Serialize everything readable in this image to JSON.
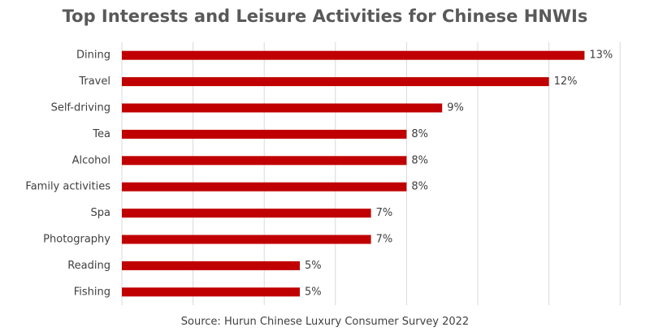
{
  "colors": {
    "bar": "#C00000",
    "grid": "#D9D9D9",
    "title": "#595959",
    "text": "#404040"
  },
  "chart_data": {
    "type": "bar",
    "orientation": "horizontal",
    "title": "Top Interests and Leisure Activities for Chinese HNWIs",
    "source": "Source: Hurun Chinese Luxury Consumer Survey 2022",
    "categories": [
      "Dining",
      "Travel",
      "Self-driving",
      "Tea",
      "Alcohol",
      "Family activities",
      "Spa",
      "Photography",
      "Reading",
      "Fishing"
    ],
    "values": [
      13,
      12,
      9,
      8,
      8,
      8,
      7,
      7,
      5,
      5
    ],
    "data_labels": [
      "13%",
      "12%",
      "9%",
      "8%",
      "8%",
      "8%",
      "7%",
      "7%",
      "5%",
      "5%"
    ],
    "xlim": [
      0,
      14
    ],
    "grid": true,
    "legend": "none"
  }
}
